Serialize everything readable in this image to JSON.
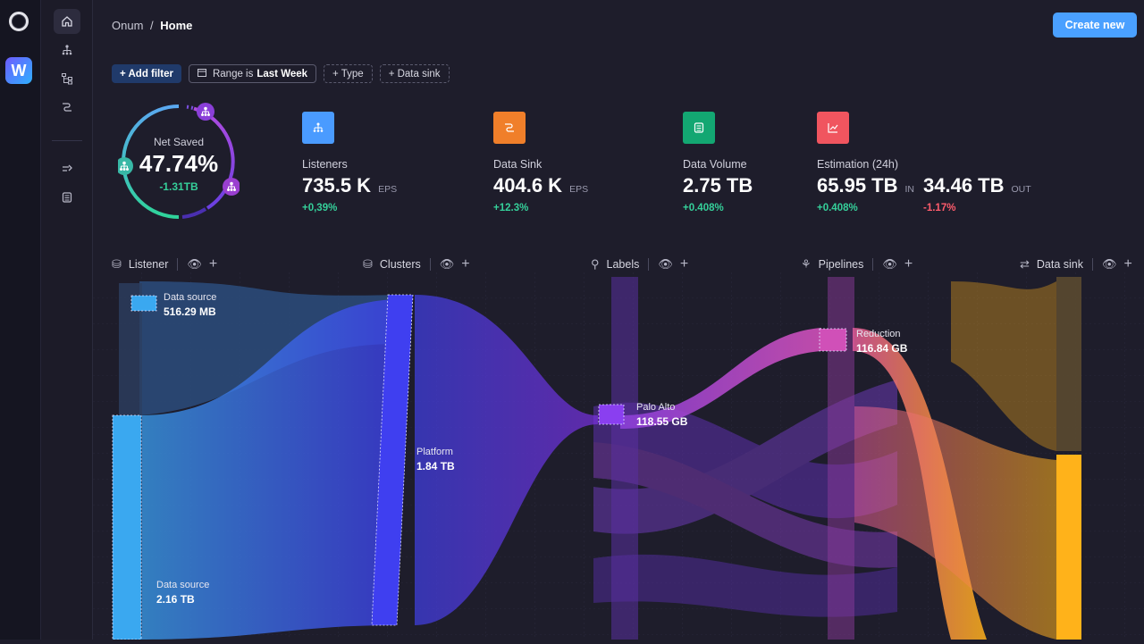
{
  "app": {
    "workspace_initial": "W"
  },
  "breadcrumb": {
    "root": "Onum",
    "separator": "/",
    "current": "Home"
  },
  "actions": {
    "create_label": "Create new"
  },
  "filters": {
    "add_label": "+ Add filter",
    "range_prefix": "Range is",
    "range_value": "Last Week",
    "type_label": "+ Type",
    "sink_label": "+ Data sink"
  },
  "net_saved": {
    "label": "Net Saved",
    "value": "47.74%",
    "change": "-1.31TB"
  },
  "kpis": {
    "listeners": {
      "name": "Listeners",
      "value": "735.5 K",
      "unit": "EPS",
      "change": "+0,39%",
      "color": "#4a9bff"
    },
    "data_sink": {
      "name": "Data Sink",
      "value": "404.6 K",
      "unit": "EPS",
      "change": "+12.3%",
      "color": "#f07f2a"
    },
    "data_volume": {
      "name": "Data Volume",
      "value": "2.75 TB",
      "change": "+0.408%",
      "color": "#13a772"
    },
    "estimation": {
      "name": "Estimation (24h)",
      "in_value": "65.95 TB",
      "in_unit": "IN",
      "out_value": "34.46 TB",
      "out_unit": "OUT",
      "in_change": "+0.408%",
      "out_change": "-1.17%",
      "color": "#f0555f"
    }
  },
  "columns": {
    "listener": "Listener",
    "clusters": "Clusters",
    "labels": "Labels",
    "pipelines": "Pipelines",
    "data_sink": "Data sink"
  },
  "nodes": {
    "source_a": {
      "name": "Data source",
      "value": "516.29 MB"
    },
    "source_b": {
      "name": "Data source",
      "value": "2.16 TB"
    },
    "platform": {
      "name": "Platform",
      "value": "1.84 TB"
    },
    "palo_alto": {
      "name": "Palo Alto",
      "value": "118.55 GB"
    },
    "reduction": {
      "name": "Reduction",
      "value": "116.84 GB"
    }
  },
  "colors": {
    "accent": "#4aa0ff",
    "positive": "#35d09a",
    "negative": "#ff5c6c",
    "listener_flow": "#3aa8f0",
    "cluster_flow": "#3f3ff0",
    "label_flow": "#7a3fd8",
    "pipeline_flow": "#c84fb0",
    "sink_flow": "#ffb21a"
  }
}
